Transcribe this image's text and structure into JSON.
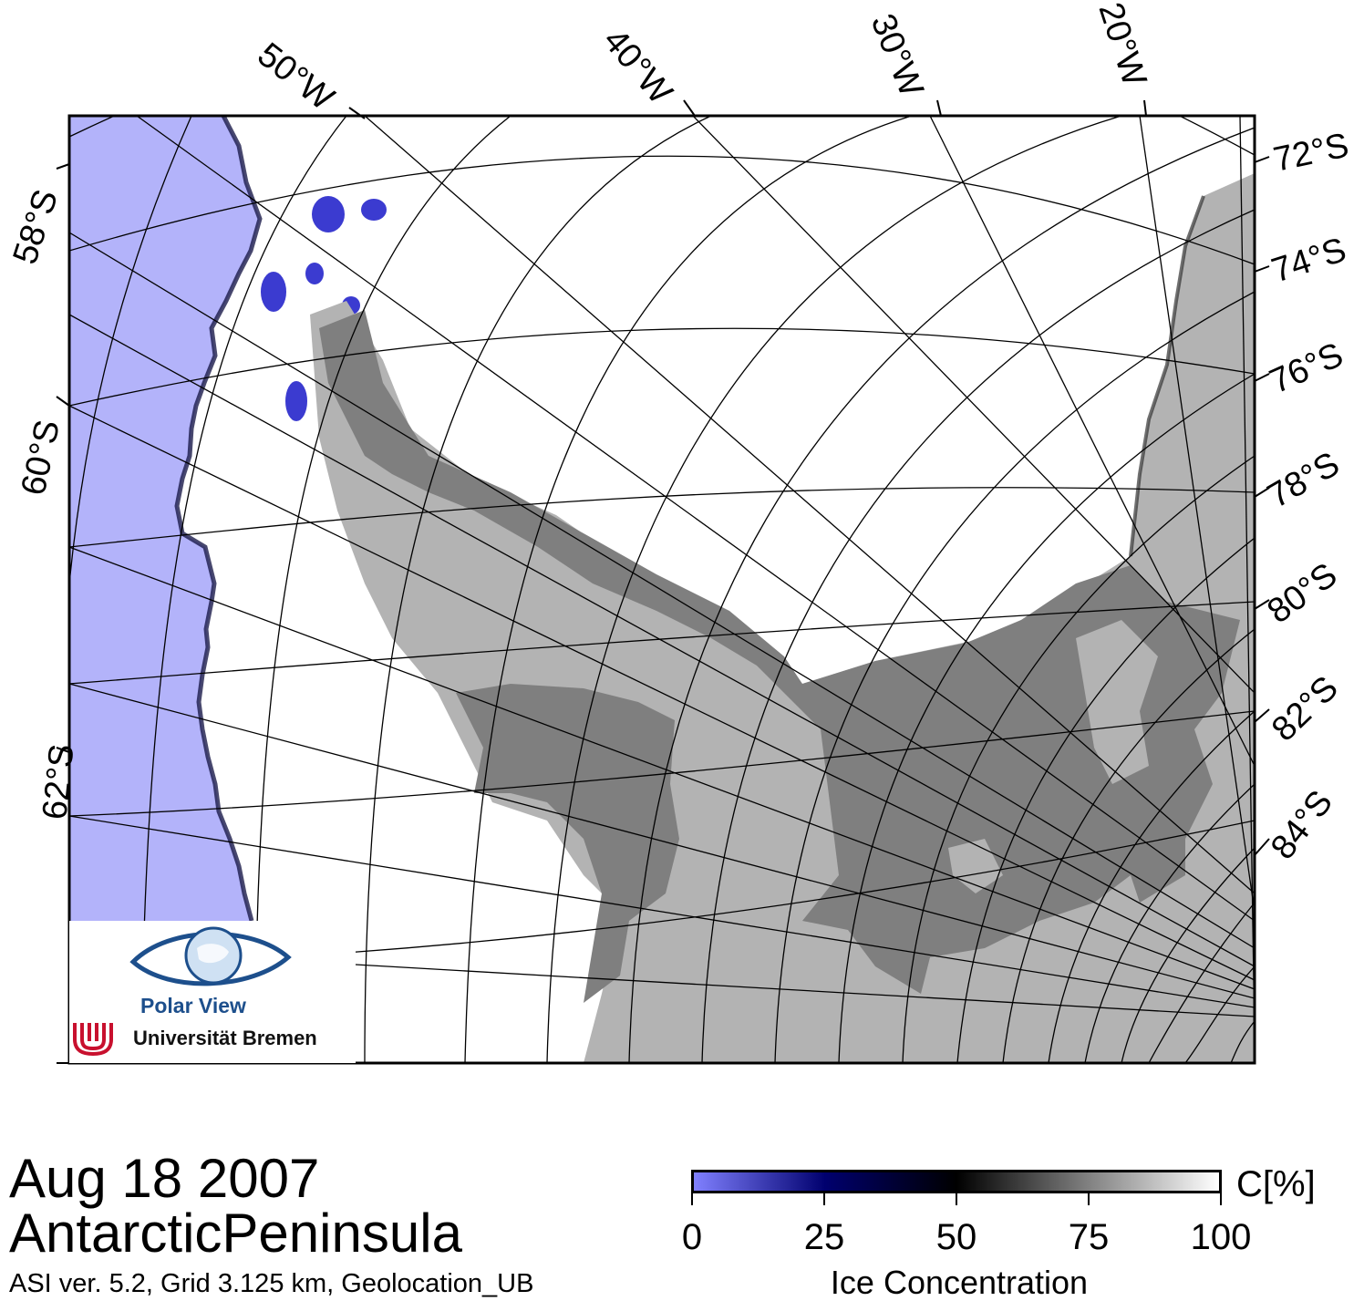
{
  "map": {
    "meridian_labels": [
      "50°W",
      "40°W",
      "30°W",
      "20°W"
    ],
    "right_parallel_labels": [
      "72°S",
      "74°S",
      "76°S",
      "78°S",
      "80°S",
      "82°S",
      "84°S"
    ],
    "left_parallel_labels": [
      "58°S",
      "60°S",
      "62°S"
    ],
    "colors": {
      "open_water": "#b3b3fa",
      "land": "#b3b3b3",
      "ice_shelf": "#7f7f7f",
      "full_ice": "#ffffff",
      "low_concentration": "#00005a"
    }
  },
  "caption": {
    "date": "Aug 18 2007",
    "region": "AntarcticPeninsula",
    "meta": "ASI ver. 5.2,  Grid 3.125 km, Geolocation_UB"
  },
  "colorbar": {
    "unit": "C[%]",
    "title": "Ice Concentration",
    "ticks": [
      "0",
      "25",
      "50",
      "75",
      "100"
    ],
    "gradient": [
      "#8080ff",
      "#00006e",
      "#000000",
      "#808080",
      "#ffffff"
    ]
  },
  "logo": {
    "name": "Polar View",
    "institution": "Universität Bremen"
  }
}
